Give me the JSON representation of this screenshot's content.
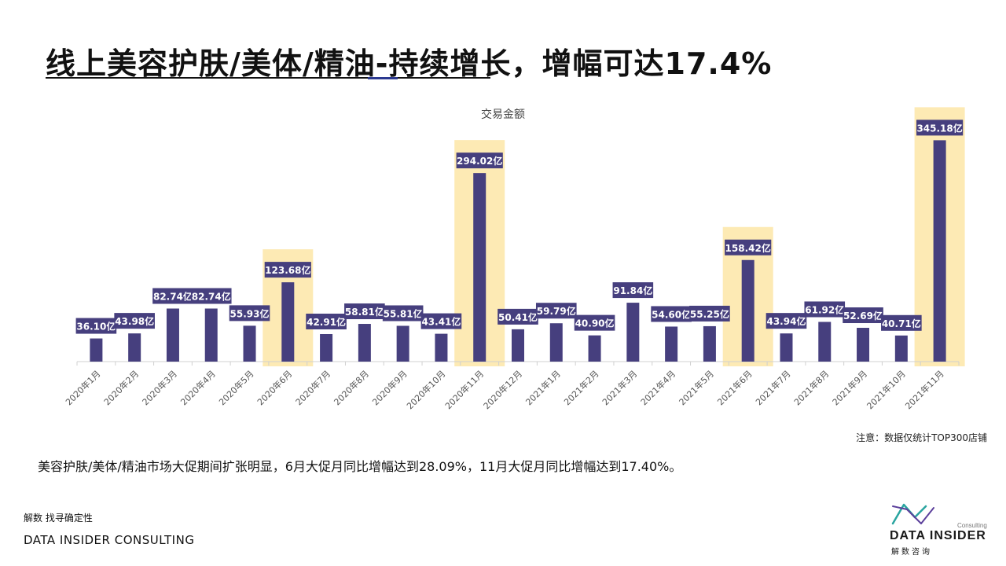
{
  "page": {
    "title": "线上美容护肤/美体/精油-持续增长，增幅可达17.4%",
    "note": "注意：数据仅统计TOP300店铺",
    "summary": "美容护肤/美体/精油市场大促期间扩张明显，6月大促月同比增幅达到28.09%，11月大促月同比增幅达到17.40%。",
    "footer_cn": "解数 找寻确定性",
    "footer_en": "DATA INSIDER CONSULTING"
  },
  "logo": {
    "name": "DATA INSIDER",
    "consulting": "Consulting",
    "cn": "解数咨询",
    "colors": {
      "teal": "#2aa5a0",
      "purple": "#5b3f9b"
    }
  },
  "chart_data": {
    "type": "bar",
    "title": "交易金额",
    "xlabel": "",
    "ylabel": "",
    "ylim": [
      0,
      380
    ],
    "unit": "亿",
    "categories": [
      "2020年1月",
      "2020年2月",
      "2020年3月",
      "2020年4月",
      "2020年5月",
      "2020年6月",
      "2020年7月",
      "2020年8月",
      "2020年9月",
      "2020年10月",
      "2020年11月",
      "2020年12月",
      "2021年1月",
      "2021年2月",
      "2021年3月",
      "2021年4月",
      "2021年5月",
      "2021年6月",
      "2021年7月",
      "2021年8月",
      "2021年9月",
      "2021年10月",
      "2021年11月"
    ],
    "values": [
      36.1,
      43.98,
      82.74,
      82.74,
      55.93,
      123.68,
      42.91,
      58.81,
      55.81,
      43.41,
      294.02,
      50.41,
      59.79,
      40.9,
      91.84,
      54.6,
      55.25,
      158.42,
      43.94,
      61.92,
      52.69,
      40.71,
      345.18
    ],
    "data_labels": [
      "36.10亿",
      "43.98亿",
      "82.74亿",
      "82.74亿",
      "55.93亿",
      "123.68亿",
      "42.91亿",
      "58.81亿",
      "55.81亿",
      "43.41亿",
      "294.02亿",
      "50.41亿",
      "59.79亿",
      "40.90亿",
      "91.84亿",
      "54.60亿",
      "55.25亿",
      "158.42亿",
      "43.94亿",
      "61.92亿",
      "52.69亿",
      "40.71亿",
      "345.18亿"
    ],
    "highlighted": [
      "2020年6月",
      "2020年11月",
      "2021年6月",
      "2021年11月"
    ],
    "grid": false,
    "legend": "none",
    "colors": {
      "bar": "#463f7e",
      "highlight": "#fdeab4",
      "label_bg": "#463f7e",
      "axis": "#d0d0d0"
    }
  }
}
